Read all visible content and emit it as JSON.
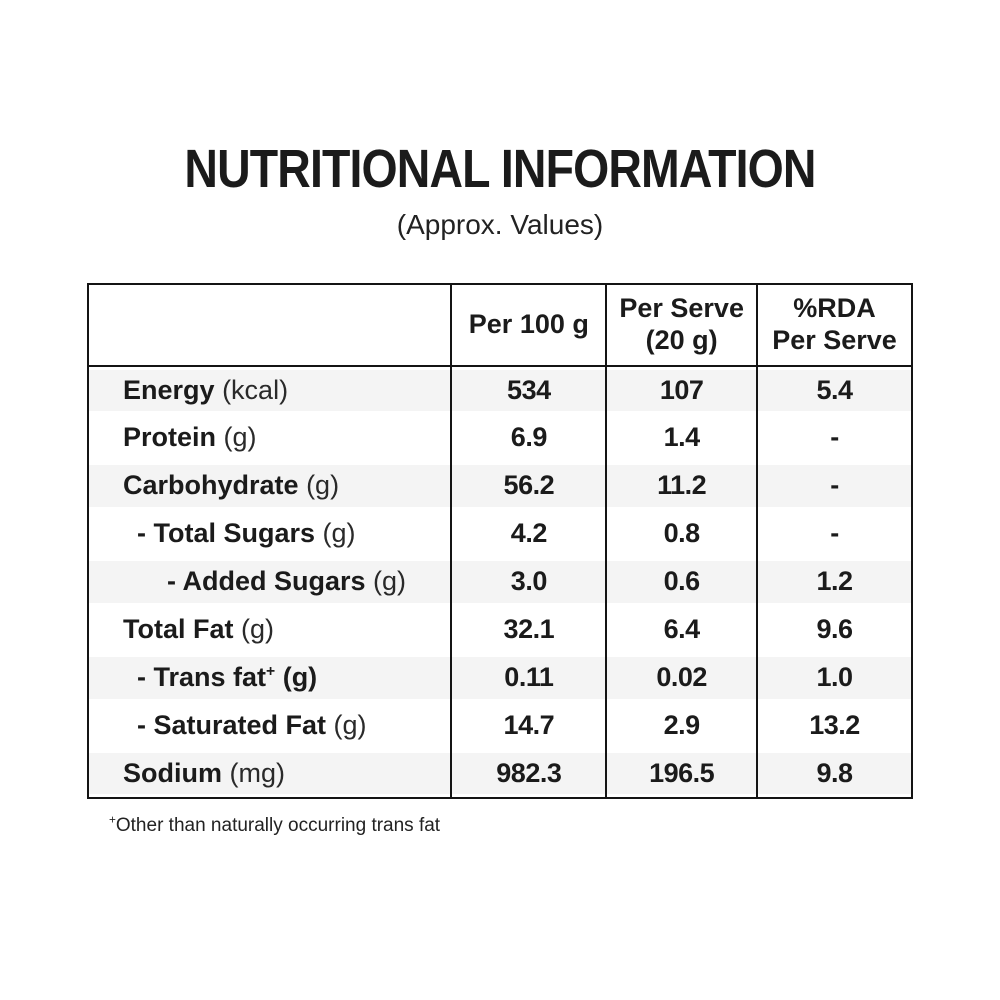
{
  "page": {
    "title": "NUTRITIONAL INFORMATION",
    "subtitle": "(Approx. Values)"
  },
  "table": {
    "headers": {
      "col1": "",
      "col2": "Per 100 g",
      "col3_line1": "Per Serve",
      "col3_line2": "(20 g)",
      "col4_line1": "%RDA",
      "col4_line2": "Per Serve"
    },
    "rows": [
      {
        "name": "Energy",
        "sup": "",
        "unit": "(kcal)",
        "per_100g": "534",
        "per_serve": "107",
        "rda_per_serve": "5.4"
      },
      {
        "name": "Protein",
        "sup": "",
        "unit": "(g)",
        "per_100g": "6.9",
        "per_serve": "1.4",
        "rda_per_serve": "-"
      },
      {
        "name": "Carbohydrate",
        "sup": "",
        "unit": "(g)",
        "per_100g": "56.2",
        "per_serve": "11.2",
        "rda_per_serve": "-"
      },
      {
        "name": "- Total Sugars",
        "sup": "",
        "unit": "(g)",
        "per_100g": "4.2",
        "per_serve": "0.8",
        "rda_per_serve": "-"
      },
      {
        "name": "- Added Sugars",
        "sup": "",
        "unit": "(g)",
        "per_100g": "3.0",
        "per_serve": "0.6",
        "rda_per_serve": "1.2"
      },
      {
        "name": "Total Fat",
        "sup": "",
        "unit": "(g)",
        "per_100g": "32.1",
        "per_serve": "6.4",
        "rda_per_serve": "9.6"
      },
      {
        "name": "- Trans fat",
        "sup": "+",
        "unit": "(g)",
        "per_100g": "0.11",
        "per_serve": "0.02",
        "rda_per_serve": "1.0"
      },
      {
        "name": "- Saturated Fat",
        "sup": "",
        "unit": "(g)",
        "per_100g": "14.7",
        "per_serve": "2.9",
        "rda_per_serve": "13.2"
      },
      {
        "name": "Sodium",
        "sup": "",
        "unit": "(mg)",
        "per_100g": "982.3",
        "per_serve": "196.5",
        "rda_per_serve": "9.8"
      }
    ]
  },
  "footnote": {
    "sup": "+",
    "text": "Other than naturally occurring trans fat"
  },
  "colors": {
    "stripe": "#f4f4f4",
    "border": "#141414",
    "text": "#1b1b1b"
  }
}
